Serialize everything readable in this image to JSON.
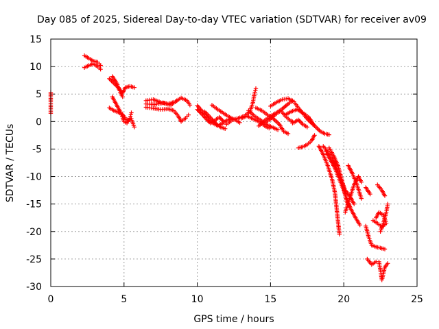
{
  "chart_data": {
    "type": "scatter",
    "title": "Day 085 of 2025, Sidereal Day-to-day VTEC variation (SDTVAR) for receiver av09",
    "xlabel": "GPS time / hours",
    "ylabel": "SDTVAR / TECUs",
    "xlim": [
      0,
      25
    ],
    "ylim": [
      -30,
      15
    ],
    "xticks": [
      0,
      5,
      10,
      15,
      20,
      25
    ],
    "yticks": [
      15,
      10,
      5,
      0,
      -5,
      -10,
      -15,
      -20,
      -25,
      -30
    ],
    "grid": true,
    "marker": "+",
    "color": "#ff0000",
    "series": [
      {
        "name": "SDTVAR",
        "segments": [
          [
            [
              0.0,
              5.3
            ],
            [
              0.0,
              4.2
            ],
            [
              0.0,
              3.0
            ],
            [
              0.0,
              1.5
            ]
          ],
          [
            [
              2.3,
              12.0
            ],
            [
              2.6,
              11.5
            ],
            [
              2.9,
              11.0
            ],
            [
              3.2,
              10.8
            ],
            [
              3.4,
              10.2
            ]
          ],
          [
            [
              2.3,
              9.8
            ],
            [
              2.6,
              10.2
            ],
            [
              2.9,
              10.5
            ],
            [
              3.2,
              10.0
            ],
            [
              3.4,
              9.5
            ]
          ],
          [
            [
              4.0,
              7.8
            ],
            [
              4.3,
              7.0
            ],
            [
              4.6,
              6.2
            ],
            [
              4.9,
              5.2
            ],
            [
              5.1,
              6.2
            ],
            [
              5.4,
              6.4
            ],
            [
              5.7,
              6.2
            ]
          ],
          [
            [
              4.2,
              8.2
            ],
            [
              4.5,
              7.0
            ],
            [
              4.7,
              5.6
            ],
            [
              4.9,
              4.5
            ]
          ],
          [
            [
              4.0,
              2.5
            ],
            [
              4.3,
              2.0
            ],
            [
              4.6,
              1.7
            ],
            [
              4.9,
              1.3
            ],
            [
              5.1,
              0.5
            ],
            [
              5.3,
              0.2
            ],
            [
              5.5,
              0.5
            ],
            [
              5.7,
              -1.0
            ]
          ],
          [
            [
              4.2,
              4.5
            ],
            [
              4.5,
              3.0
            ],
            [
              4.8,
              1.5
            ],
            [
              5.0,
              0.0
            ],
            [
              5.2,
              -0.3
            ],
            [
              5.4,
              0.6
            ],
            [
              5.5,
              1.6
            ]
          ],
          [
            [
              6.5,
              3.8
            ],
            [
              7.0,
              4.0
            ],
            [
              7.5,
              3.5
            ],
            [
              8.0,
              3.2
            ],
            [
              8.5,
              3.6
            ],
            [
              8.9,
              4.3
            ],
            [
              9.3,
              3.8
            ],
            [
              9.5,
              3.0
            ]
          ],
          [
            [
              6.5,
              2.6
            ],
            [
              7.0,
              2.4
            ],
            [
              7.5,
              2.2
            ],
            [
              8.0,
              2.3
            ],
            [
              8.4,
              2.0
            ],
            [
              8.7,
              1.0
            ],
            [
              8.9,
              0.0
            ],
            [
              9.2,
              0.6
            ],
            [
              9.4,
              1.2
            ]
          ],
          [
            [
              6.5,
              3.2
            ],
            [
              7.1,
              3.1
            ],
            [
              7.7,
              3.4
            ],
            [
              8.2,
              3.0
            ],
            [
              8.6,
              3.8
            ]
          ],
          [
            [
              10.0,
              2.9
            ],
            [
              10.3,
              2.0
            ],
            [
              10.6,
              1.0
            ],
            [
              10.9,
              0.0
            ],
            [
              11.2,
              -0.5
            ],
            [
              11.6,
              -1.0
            ],
            [
              11.9,
              -1.3
            ]
          ],
          [
            [
              10.0,
              2.2
            ],
            [
              10.3,
              1.4
            ],
            [
              10.6,
              0.5
            ],
            [
              10.9,
              -0.3
            ],
            [
              11.2,
              0.2
            ],
            [
              11.5,
              0.8
            ],
            [
              11.8,
              0.0
            ]
          ],
          [
            [
              10.5,
              1.8
            ],
            [
              10.8,
              1.0
            ],
            [
              11.1,
              0.1
            ],
            [
              11.4,
              -0.7
            ],
            [
              11.7,
              -0.4
            ],
            [
              12.0,
              0.2
            ],
            [
              12.3,
              0.5
            ]
          ],
          [
            [
              11.0,
              3.0
            ],
            [
              11.4,
              2.2
            ],
            [
              11.8,
              1.5
            ],
            [
              12.2,
              0.8
            ],
            [
              12.6,
              0.3
            ],
            [
              12.9,
              -0.2
            ]
          ],
          [
            [
              12.0,
              -0.5
            ],
            [
              12.4,
              0.3
            ],
            [
              12.8,
              0.6
            ],
            [
              13.2,
              1.0
            ],
            [
              13.6,
              1.8
            ],
            [
              13.8,
              3.5
            ],
            [
              13.9,
              5.0
            ],
            [
              14.0,
              6.0
            ]
          ],
          [
            [
              13.0,
              0.6
            ],
            [
              13.4,
              1.0
            ],
            [
              13.8,
              0.5
            ],
            [
              14.2,
              0.0
            ],
            [
              14.6,
              -0.8
            ],
            [
              14.9,
              -1.2
            ]
          ],
          [
            [
              13.5,
              2.0
            ],
            [
              13.9,
              1.0
            ],
            [
              14.3,
              0.3
            ],
            [
              14.7,
              -0.5
            ],
            [
              15.1,
              -1.0
            ],
            [
              15.5,
              -1.5
            ]
          ],
          [
            [
              14.0,
              2.5
            ],
            [
              14.4,
              2.0
            ],
            [
              14.8,
              1.2
            ],
            [
              15.2,
              0.5
            ],
            [
              15.6,
              -0.5
            ],
            [
              15.9,
              -1.8
            ],
            [
              16.2,
              -2.2
            ]
          ],
          [
            [
              14.2,
              -0.8
            ],
            [
              14.6,
              0.2
            ],
            [
              15.0,
              1.0
            ],
            [
              15.4,
              1.6
            ],
            [
              15.8,
              2.3
            ],
            [
              16.2,
              3.2
            ],
            [
              16.5,
              3.8
            ]
          ],
          [
            [
              14.5,
              -0.5
            ],
            [
              14.9,
              0.3
            ],
            [
              15.3,
              1.2
            ],
            [
              15.7,
              2.0
            ],
            [
              16.0,
              1.0
            ],
            [
              16.3,
              0.3
            ],
            [
              16.6,
              -0.2
            ]
          ],
          [
            [
              15.0,
              2.8
            ],
            [
              15.4,
              3.5
            ],
            [
              15.8,
              4.0
            ],
            [
              16.2,
              4.2
            ],
            [
              16.6,
              3.6
            ],
            [
              16.9,
              2.5
            ],
            [
              17.2,
              1.5
            ],
            [
              17.5,
              0.5
            ]
          ],
          [
            [
              16.0,
              1.2
            ],
            [
              16.4,
              1.8
            ],
            [
              16.8,
              2.2
            ],
            [
              17.2,
              1.6
            ],
            [
              17.6,
              0.8
            ],
            [
              18.0,
              -0.8
            ]
          ],
          [
            [
              16.5,
              -0.3
            ],
            [
              16.9,
              0.3
            ],
            [
              17.2,
              -0.5
            ],
            [
              17.5,
              -1.0
            ]
          ],
          [
            [
              17.5,
              0.5
            ],
            [
              17.8,
              -0.3
            ],
            [
              18.1,
              -1.0
            ],
            [
              18.4,
              -1.8
            ],
            [
              18.7,
              -2.2
            ],
            [
              19.0,
              -2.4
            ]
          ],
          [
            [
              16.9,
              -4.8
            ],
            [
              17.2,
              -4.6
            ],
            [
              17.5,
              -4.2
            ],
            [
              17.8,
              -3.5
            ],
            [
              18.0,
              -2.5
            ]
          ],
          [
            [
              18.3,
              -4.5
            ],
            [
              18.6,
              -6.0
            ],
            [
              18.9,
              -8.0
            ],
            [
              19.2,
              -10.5
            ],
            [
              19.4,
              -13.0
            ],
            [
              19.5,
              -15.5
            ],
            [
              19.6,
              -18.0
            ],
            [
              19.7,
              -20.5
            ]
          ],
          [
            [
              18.6,
              -4.5
            ],
            [
              18.9,
              -5.5
            ],
            [
              19.2,
              -6.5
            ],
            [
              19.5,
              -8.5
            ],
            [
              19.8,
              -10.5
            ],
            [
              20.1,
              -12.5
            ],
            [
              20.4,
              -13.5
            ],
            [
              20.7,
              -15.0
            ]
          ],
          [
            [
              18.8,
              -5.5
            ],
            [
              19.1,
              -7.0
            ],
            [
              19.4,
              -8.5
            ],
            [
              19.7,
              -10.5
            ],
            [
              20.0,
              -12.5
            ],
            [
              20.2,
              -14.0
            ],
            [
              20.5,
              -16.0
            ],
            [
              20.8,
              -17.5
            ],
            [
              21.1,
              -18.8
            ]
          ],
          [
            [
              19.0,
              -4.8
            ],
            [
              19.3,
              -6.2
            ],
            [
              19.6,
              -8.0
            ],
            [
              19.9,
              -11.0
            ],
            [
              20.2,
              -14.5
            ],
            [
              20.4,
              -15.5
            ]
          ],
          [
            [
              20.1,
              -16.5
            ],
            [
              20.4,
              -14.0
            ],
            [
              20.7,
              -11.5
            ],
            [
              21.0,
              -10.0
            ],
            [
              21.2,
              -11.0
            ]
          ],
          [
            [
              20.3,
              -8.0
            ],
            [
              20.6,
              -9.5
            ],
            [
              20.9,
              -11.5
            ],
            [
              21.2,
              -14.0
            ]
          ],
          [
            [
              21.5,
              -12.0
            ],
            [
              21.8,
              -13.2
            ]
          ],
          [
            [
              21.5,
              -19.0
            ],
            [
              21.7,
              -21.0
            ],
            [
              21.9,
              -22.5
            ],
            [
              22.2,
              -22.8
            ],
            [
              22.5,
              -23.0
            ],
            [
              22.8,
              -23.2
            ]
          ],
          [
            [
              21.6,
              -25.0
            ],
            [
              21.9,
              -26.0
            ],
            [
              22.2,
              -25.5
            ]
          ],
          [
            [
              22.3,
              -11.5
            ],
            [
              22.6,
              -12.5
            ],
            [
              22.8,
              -13.5
            ]
          ],
          [
            [
              22.0,
              -18.0
            ],
            [
              22.3,
              -18.5
            ],
            [
              22.6,
              -19.2
            ],
            [
              22.9,
              -18.5
            ],
            [
              22.7,
              -17.0
            ],
            [
              22.4,
              -16.5
            ],
            [
              22.2,
              -17.5
            ]
          ],
          [
            [
              22.5,
              -20.0
            ],
            [
              22.7,
              -18.5
            ],
            [
              22.9,
              -16.5
            ],
            [
              23.0,
              -15.0
            ]
          ],
          [
            [
              22.4,
              -25.5
            ],
            [
              22.5,
              -27.0
            ],
            [
              22.6,
              -28.8
            ],
            [
              22.8,
              -26.5
            ],
            [
              23.0,
              -25.8
            ]
          ]
        ]
      }
    ]
  }
}
